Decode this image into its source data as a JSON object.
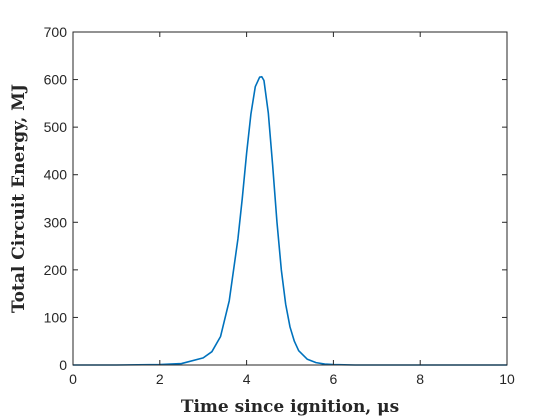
{
  "chart_data": {
    "type": "line",
    "title": "",
    "xlabel": "Time since ignition, μs",
    "ylabel": "Total Circuit Energy, MJ",
    "xlim": [
      0,
      10
    ],
    "ylim": [
      0,
      700
    ],
    "xticks": [
      "0",
      "2",
      "4",
      "6",
      "8",
      "10"
    ],
    "yticks": [
      "0",
      "100",
      "200",
      "300",
      "400",
      "500",
      "600",
      "700"
    ],
    "grid": false,
    "legend": "none",
    "line_color": "#0072BD",
    "series": [
      {
        "x": [
          0,
          1,
          2,
          2.5,
          3,
          3.2,
          3.4,
          3.6,
          3.8,
          3.9,
          4.0,
          4.1,
          4.2,
          4.3,
          4.35,
          4.4,
          4.5,
          4.6,
          4.7,
          4.8,
          4.9,
          5.0,
          5.1,
          5.2,
          5.4,
          5.6,
          5.8,
          6.0,
          6.5,
          7,
          8,
          9,
          10
        ],
        "values": [
          0,
          0,
          1,
          3,
          15,
          28,
          60,
          135,
          265,
          350,
          445,
          528,
          585,
          605,
          606,
          598,
          530,
          420,
          300,
          200,
          128,
          80,
          50,
          30,
          12,
          5,
          2,
          1,
          0,
          0,
          0,
          0,
          0
        ]
      }
    ]
  }
}
